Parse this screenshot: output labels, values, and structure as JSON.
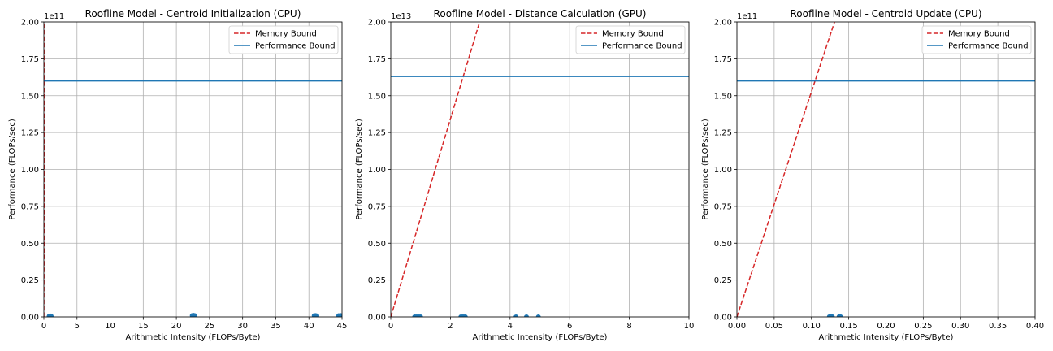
{
  "figure": {
    "background": "#ffffff"
  },
  "styles": {
    "memory_color": "#d62728",
    "performance_color": "#1f77b4",
    "point_color": "#1f77b4"
  },
  "chart_data": [
    {
      "type": "line",
      "title": "Roofline Model - Centroid Initialization (CPU)",
      "xlabel": "Arithmetic Intensity (FLOPs/Byte)",
      "ylabel": "Performance (FLOPs/sec)",
      "offset_label": "1e11",
      "xlim": [
        0,
        45
      ],
      "ylim": [
        0,
        2.0
      ],
      "xticks": [
        "0",
        "5",
        "10",
        "15",
        "20",
        "25",
        "30",
        "35",
        "40",
        "45"
      ],
      "yticks": [
        "0.00",
        "0.25",
        "0.50",
        "0.75",
        "1.00",
        "1.25",
        "1.50",
        "1.75",
        "2.00"
      ],
      "grid": true,
      "legend_position": "top-right",
      "series": [
        {
          "name": "Memory Bound",
          "kind": "dashed-line",
          "color": "#d62728",
          "x": [
            0,
            0.15
          ],
          "y": [
            0,
            2.0
          ]
        },
        {
          "name": "Performance Bound",
          "kind": "line",
          "color": "#1f77b4",
          "x": [
            0,
            45
          ],
          "y": [
            1.6,
            1.6
          ]
        },
        {
          "kind": "scatter",
          "color": "#1f77b4",
          "x": [
            0.8,
            0.9,
            1.0,
            1.1,
            22.4,
            22.6,
            22.8,
            40.8,
            41.0,
            41.2,
            44.5,
            44.8
          ],
          "y": [
            0.004,
            0.005,
            0.006,
            0.005,
            0.009,
            0.01,
            0.008,
            0.008,
            0.009,
            0.007,
            0.008,
            0.009
          ]
        }
      ]
    },
    {
      "type": "line",
      "title": "Roofline Model - Distance Calculation (GPU)",
      "xlabel": "Arithmetic Intensity (FLOPs/Byte)",
      "ylabel": "Performance (FLOPs/sec)",
      "offset_label": "1e13",
      "xlim": [
        0,
        10
      ],
      "ylim": [
        0,
        2.0
      ],
      "xticks": [
        "0",
        "2",
        "4",
        "6",
        "8",
        "10"
      ],
      "yticks": [
        "0.00",
        "0.25",
        "0.50",
        "0.75",
        "1.00",
        "1.25",
        "1.50",
        "1.75",
        "2.00"
      ],
      "grid": true,
      "legend_position": "top-right",
      "series": [
        {
          "name": "Memory Bound",
          "kind": "dashed-line",
          "color": "#d62728",
          "x": [
            0,
            2.98
          ],
          "y": [
            0,
            2.0
          ]
        },
        {
          "name": "Performance Bound",
          "kind": "line",
          "color": "#1f77b4",
          "x": [
            0,
            10
          ],
          "y": [
            1.63,
            1.63
          ]
        },
        {
          "kind": "scatter",
          "color": "#1f77b4",
          "x": [
            0.8,
            0.85,
            0.9,
            0.95,
            1.0,
            2.35,
            2.4,
            2.45,
            2.5,
            4.2,
            4.55,
            4.95
          ],
          "y": [
            0.0,
            0.0,
            0.0,
            0.0,
            0.0,
            0.0,
            0.0,
            0.0,
            0.0,
            0.0,
            0.0,
            0.0
          ]
        }
      ]
    },
    {
      "type": "line",
      "title": "Roofline Model - Centroid Update (CPU)",
      "xlabel": "Arithmetic Intensity (FLOPs/Byte)",
      "ylabel": "Performance (FLOPs/sec)",
      "offset_label": "1e11",
      "xlim": [
        0,
        0.4
      ],
      "ylim": [
        0,
        2.0
      ],
      "xticks": [
        "0.00",
        "0.05",
        "0.10",
        "0.15",
        "0.20",
        "0.25",
        "0.30",
        "0.35",
        "0.40"
      ],
      "yticks": [
        "0.00",
        "0.25",
        "0.50",
        "0.75",
        "1.00",
        "1.25",
        "1.50",
        "1.75",
        "2.00"
      ],
      "grid": true,
      "legend_position": "top-right",
      "series": [
        {
          "name": "Memory Bound",
          "kind": "dashed-line",
          "color": "#d62728",
          "x": [
            0,
            0.131
          ],
          "y": [
            0,
            2.0
          ]
        },
        {
          "name": "Performance Bound",
          "kind": "line",
          "color": "#1f77b4",
          "x": [
            0,
            0.4
          ],
          "y": [
            1.6,
            1.6
          ]
        },
        {
          "kind": "scatter",
          "color": "#1f77b4",
          "x": [
            0.124,
            0.126,
            0.128,
            0.137,
            0.139
          ],
          "y": [
            0.001,
            0.001,
            0.001,
            0.001,
            0.001
          ]
        }
      ]
    }
  ]
}
